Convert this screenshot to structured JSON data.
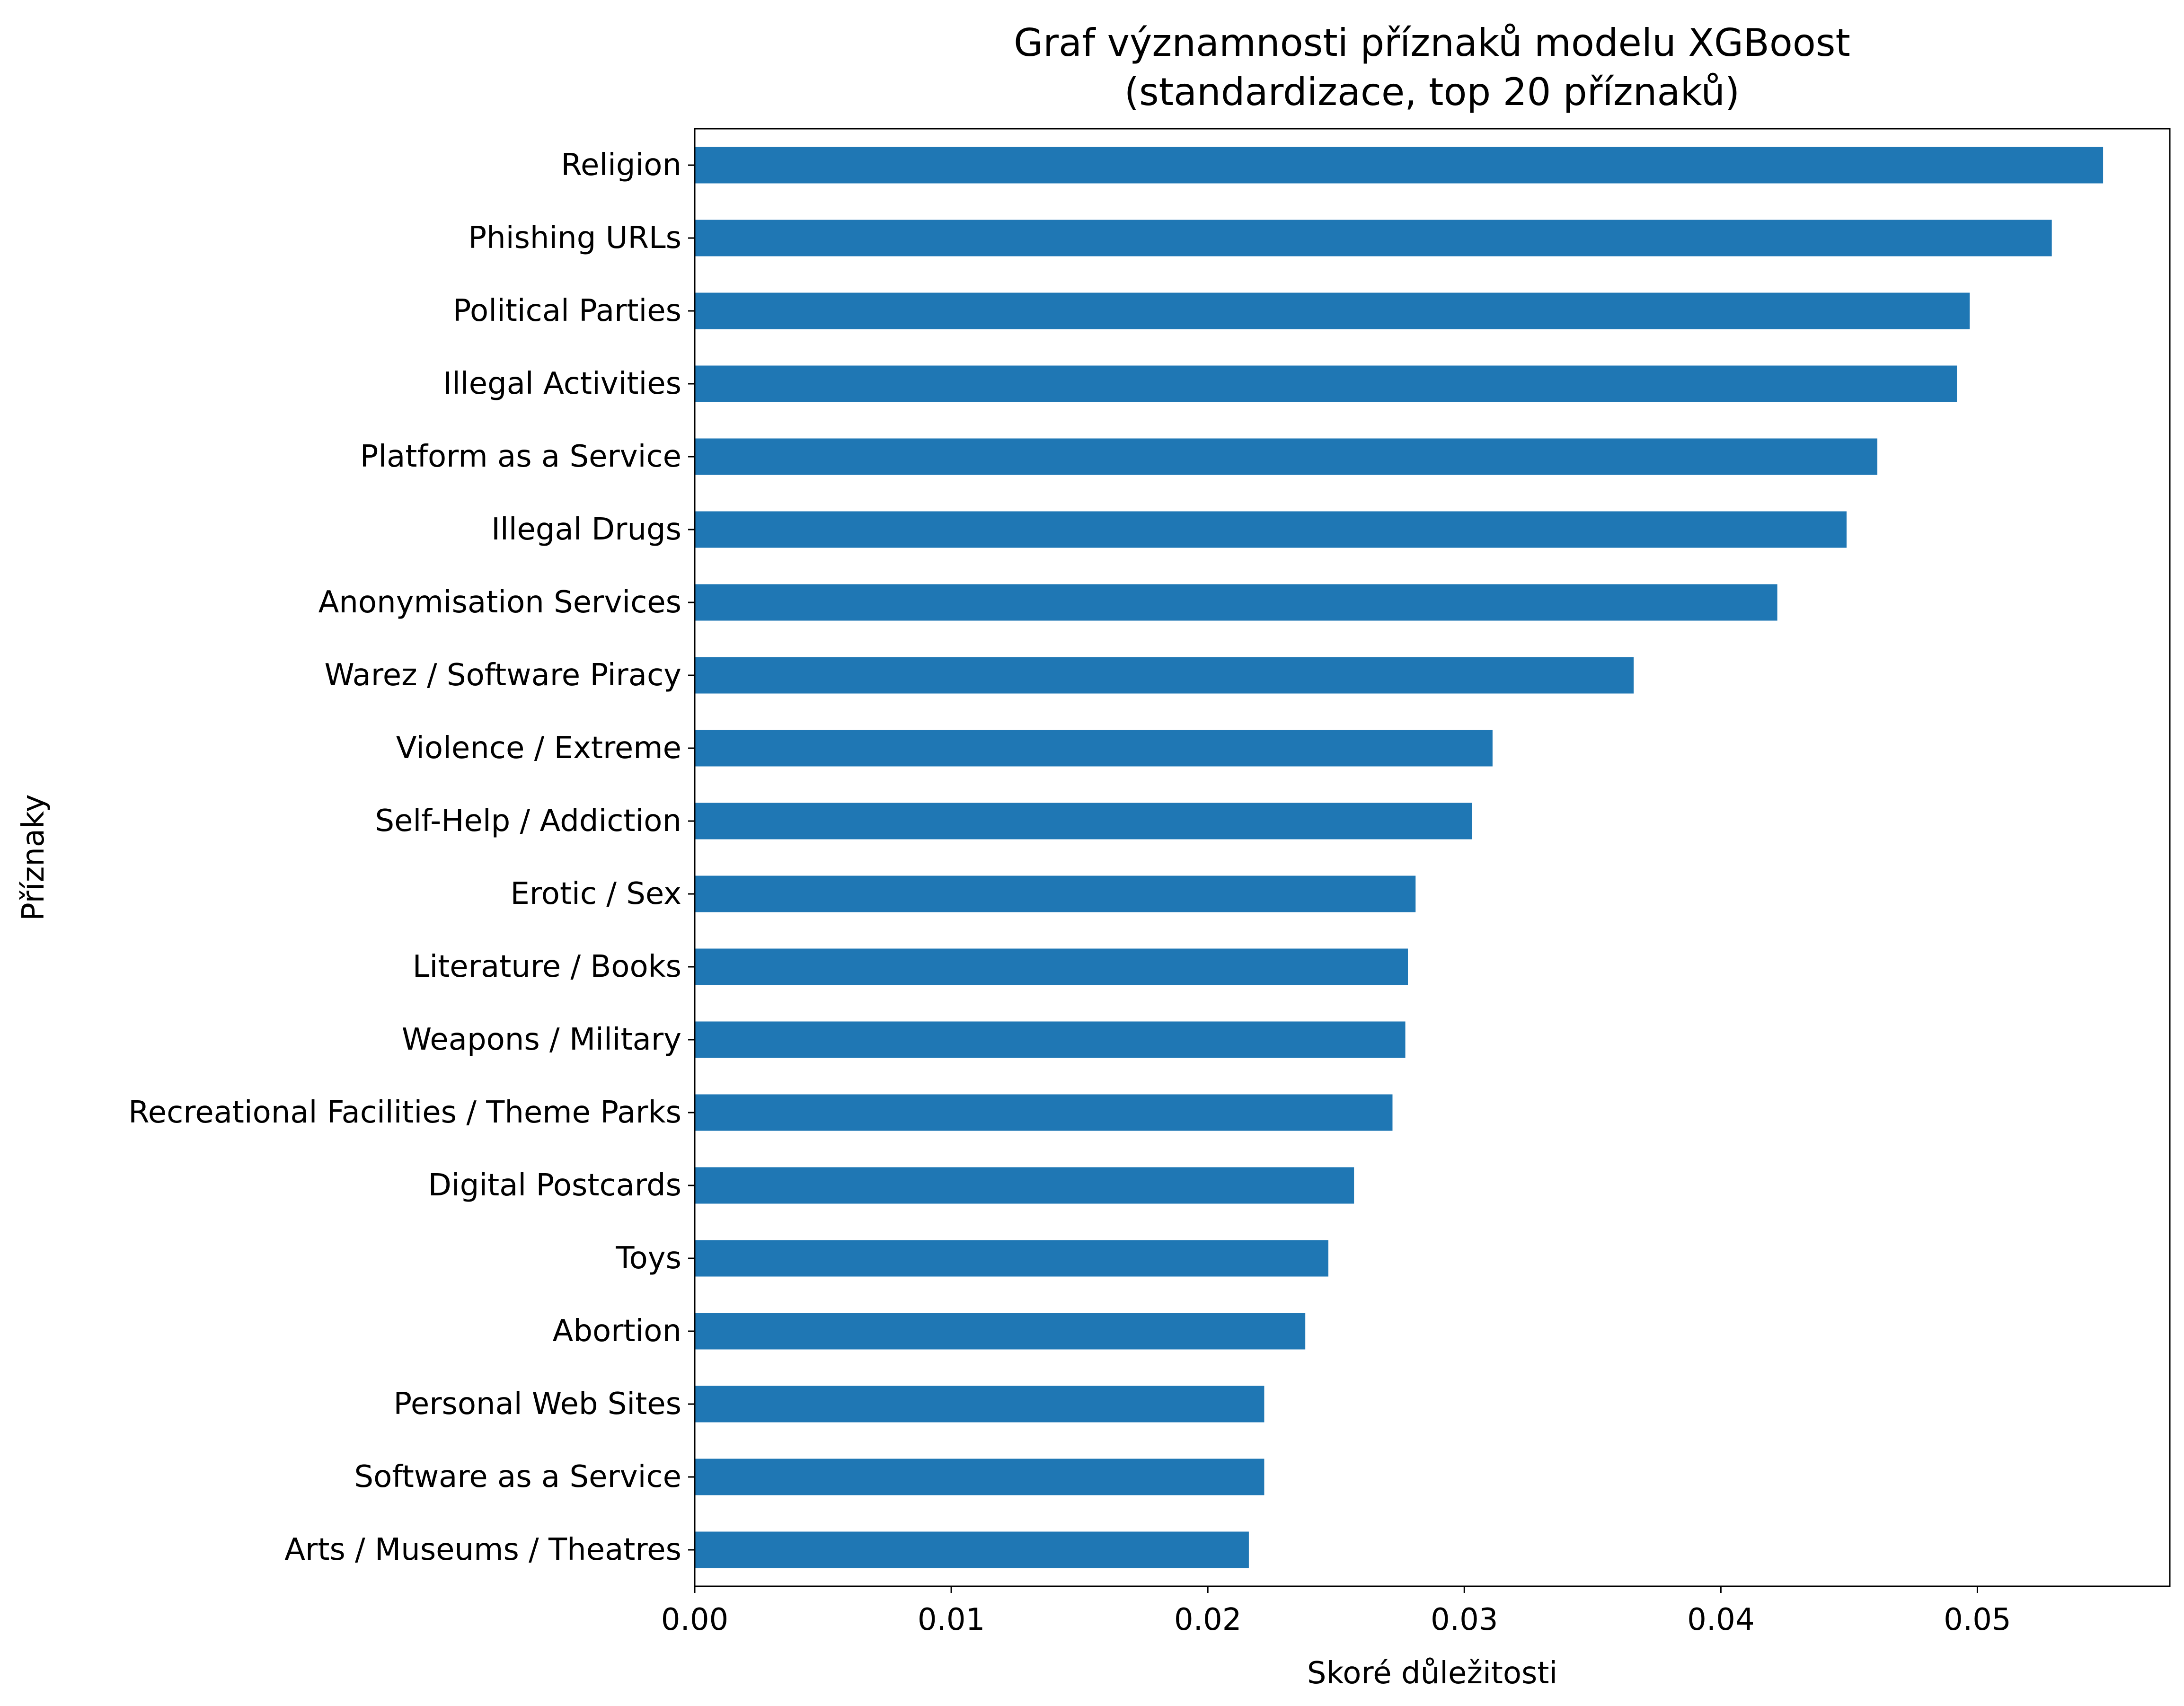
{
  "chart_data": {
    "type": "bar",
    "orientation": "horizontal",
    "title": "Graf významnosti příznaků modelu XGBoost",
    "subtitle": "(standardizace, top 20 příznaků)",
    "xlabel": "Skoré důležitosti",
    "ylabel": "Příznaky",
    "xlim": [
      0,
      0.0575
    ],
    "xticks": [
      0.0,
      0.01,
      0.02,
      0.03,
      0.04,
      0.05
    ],
    "xtick_labels": [
      "0.00",
      "0.01",
      "0.02",
      "0.03",
      "0.04",
      "0.05"
    ],
    "grid": false,
    "bar_color": "#1f77b4",
    "categories": [
      "Religion",
      "Phishing URLs",
      "Political Parties",
      "Illegal Activities",
      "Platform as a Service",
      "Illegal Drugs",
      "Anonymisation Services",
      "Warez / Software Piracy",
      "Violence / Extreme",
      "Self-Help / Addiction",
      "Erotic / Sex",
      "Literature / Books",
      "Weapons / Military",
      "Recreational Facilities / Theme Parks",
      "Digital Postcards",
      "Toys",
      "Abortion",
      "Personal Web Sites",
      "Software as a Service",
      "Arts / Museums / Theatres"
    ],
    "values": [
      0.0549,
      0.0529,
      0.0497,
      0.0492,
      0.0461,
      0.0449,
      0.0422,
      0.0366,
      0.0311,
      0.0303,
      0.0281,
      0.0278,
      0.0277,
      0.0272,
      0.0257,
      0.0247,
      0.0238,
      0.0222,
      0.0222,
      0.0216
    ]
  }
}
